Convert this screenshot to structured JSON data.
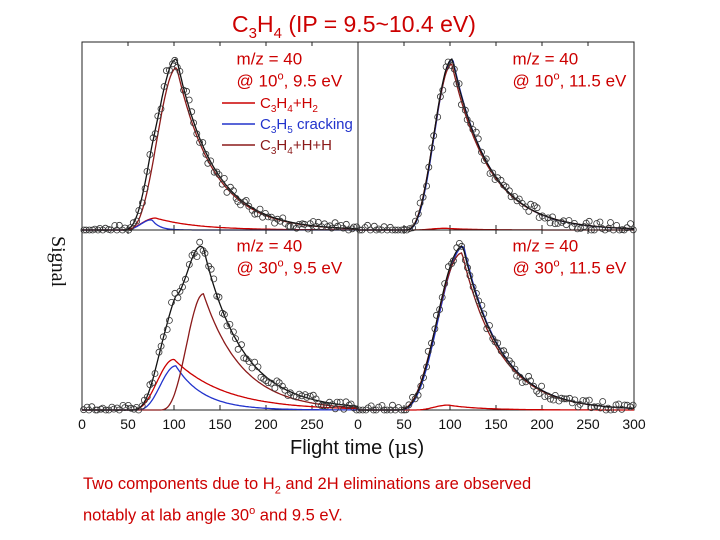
{
  "chart_data": {
    "type": "line",
    "title": {
      "prefix": "C",
      "sub1": "3",
      "mid": "H",
      "sub2": "4",
      "suffix": " (IP = 9.5~10.4 eV)"
    },
    "xlabel": {
      "before": "Flight time (",
      "mu": "μ",
      "after": "s)"
    },
    "ylabel": "Signal",
    "xlim": [
      0,
      300
    ],
    "ylim": [
      0,
      1.1
    ],
    "x_ticks": [
      0,
      50,
      100,
      150,
      200,
      250,
      300
    ],
    "x_tick_labels_left": [
      "0",
      "50",
      "100",
      "150",
      "200",
      "250",
      "0"
    ],
    "x_tick_labels_right": [
      "50",
      "100",
      "150",
      "200",
      "250",
      "300"
    ],
    "legend": [
      {
        "sym": "C",
        "s1": "3",
        "mid": "H",
        "s2": "4",
        "rest": "+H",
        "s3": "2",
        "tail": "",
        "color": "#cc0000"
      },
      {
        "sym": "C",
        "s1": "3",
        "mid": "H",
        "s2": "5",
        "rest": " cracking",
        "s3": "",
        "tail": "",
        "color": "#2233cc"
      },
      {
        "sym": "C",
        "s1": "3",
        "mid": "H",
        "s2": "4",
        "rest": "+H+H",
        "s3": "",
        "tail": "",
        "color": "#8b1a1a"
      }
    ],
    "colors": {
      "red": "#cc0000",
      "blue": "#2233cc",
      "darkred": "#8b1a1a",
      "total": "#111111",
      "labels": "#cc0000"
    },
    "panels": [
      {
        "id": "top-left",
        "label_line1": "m/z = 40",
        "label_line2": {
          "at": "@ ",
          "angle": "10",
          "deg": "o",
          "rest": ", 9.5 eV"
        },
        "series": [
          {
            "name": "C3H4+H2",
            "color": "#cc0000",
            "peak_x": 80,
            "amplitude": 0.07,
            "rise": 10,
            "decay": 45
          },
          {
            "name": "C3H5 cracking",
            "color": "#2233cc",
            "peak_x": 76,
            "amplitude": 0.06,
            "rise": 8,
            "decay": 8
          },
          {
            "name": "C3H4+H+H",
            "color": "#8b1a1a",
            "peak_x": 103,
            "amplitude": 0.95,
            "rise": 14,
            "decay": 40
          }
        ],
        "total": {
          "name": "Total fit",
          "color": "#111111",
          "peak_x": 102,
          "amplitude": 1.0
        }
      },
      {
        "id": "top-right",
        "label_line1": "m/z = 40",
        "label_line2": {
          "at": "@ ",
          "angle": "10",
          "deg": "o",
          "rest": ", 11.5 eV"
        },
        "series": [
          {
            "name": "C3H4+H2",
            "color": "#cc0000",
            "peak_x": 95,
            "amplitude": 0.01,
            "rise": 10,
            "decay": 30
          },
          {
            "name": "C3H5 cracking",
            "color": "#2233cc",
            "peak_x": 103,
            "amplitude": 1.0,
            "rise": 13,
            "decay": 40
          },
          {
            "name": "C3H4+H+H",
            "color": "#8b1a1a",
            "peak_x": 102,
            "amplitude": 0.97,
            "rise": 13,
            "decay": 41
          }
        ],
        "total": {
          "name": "Total fit",
          "color": "#111111",
          "peak_x": 103,
          "amplitude": 1.0
        }
      },
      {
        "id": "bottom-left",
        "label_line1": "m/z = 40",
        "label_line2": {
          "at": "@ ",
          "angle": "30",
          "deg": "o",
          "rest": ", 9.5 eV"
        },
        "series": [
          {
            "name": "C3H4+H2",
            "color": "#cc0000",
            "peak_x": 100,
            "amplitude": 0.31,
            "rise": 12,
            "decay": 55
          },
          {
            "name": "C3H5 cracking",
            "color": "#2233cc",
            "peak_x": 102,
            "amplitude": 0.27,
            "rise": 11,
            "decay": 30
          },
          {
            "name": "C3H4+H+H",
            "color": "#8b1a1a",
            "peak_x": 132,
            "amplitude": 0.71,
            "rise": 12,
            "decay": 42
          }
        ],
        "total": {
          "name": "Total fit",
          "color": "#111111",
          "peak_x": 127,
          "amplitude": 1.0
        }
      },
      {
        "id": "bottom-right",
        "label_line1": "m/z = 40",
        "label_line2": {
          "at": "@ ",
          "angle": "30",
          "deg": "o",
          "rest": ", 11.5 eV"
        },
        "series": [
          {
            "name": "C3H4+H2",
            "color": "#cc0000",
            "peak_x": 98,
            "amplitude": 0.03,
            "rise": 10,
            "decay": 35
          },
          {
            "name": "C3H5 cracking",
            "color": "#2233cc",
            "peak_x": 115,
            "amplitude": 1.0,
            "rise": 18,
            "decay": 40
          },
          {
            "name": "C3H4+H+H",
            "color": "#8b1a1a",
            "peak_x": 113,
            "amplitude": 0.96,
            "rise": 18,
            "decay": 41
          }
        ],
        "total": {
          "name": "Total fit",
          "color": "#111111",
          "peak_x": 115,
          "amplitude": 1.0
        }
      }
    ]
  },
  "caption": {
    "line1_a": "Two components due to H",
    "line1_sub": "2",
    "line1_b": " and 2H eliminations are observed",
    "line2_a": "notably at lab angle 30",
    "line2_sup": "o",
    "line2_b": " and 9.5 eV."
  }
}
